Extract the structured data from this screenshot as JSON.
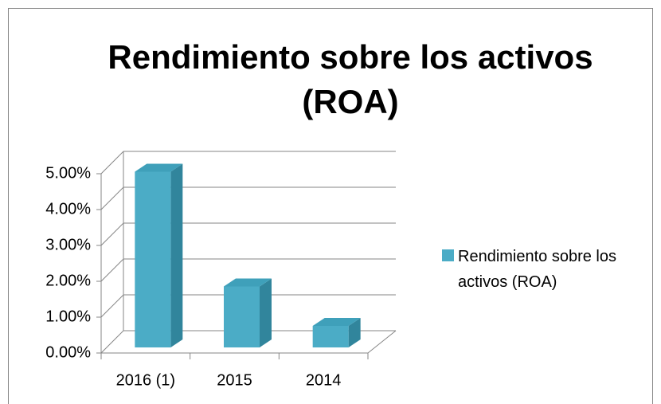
{
  "chart_data": {
    "type": "bar3d",
    "title": "Rendimiento sobre los activos (ROA)",
    "categories": [
      "2016 (1)",
      "2015",
      "2014"
    ],
    "series": [
      {
        "name": "Rendimiento sobre los activos (ROA)",
        "color": "#4bacc6",
        "values": [
          4.9,
          1.7,
          0.6
        ]
      }
    ],
    "ylim": [
      0,
      5
    ],
    "yticks": [
      {
        "value": 0,
        "label": "0.00%"
      },
      {
        "value": 1,
        "label": "1.00%"
      },
      {
        "value": 2,
        "label": "2.00%"
      },
      {
        "value": 3,
        "label": "3.00%"
      },
      {
        "value": 4,
        "label": "4.00%"
      },
      {
        "value": 5,
        "label": "5.00%"
      }
    ],
    "grid": true,
    "legend": "right"
  }
}
